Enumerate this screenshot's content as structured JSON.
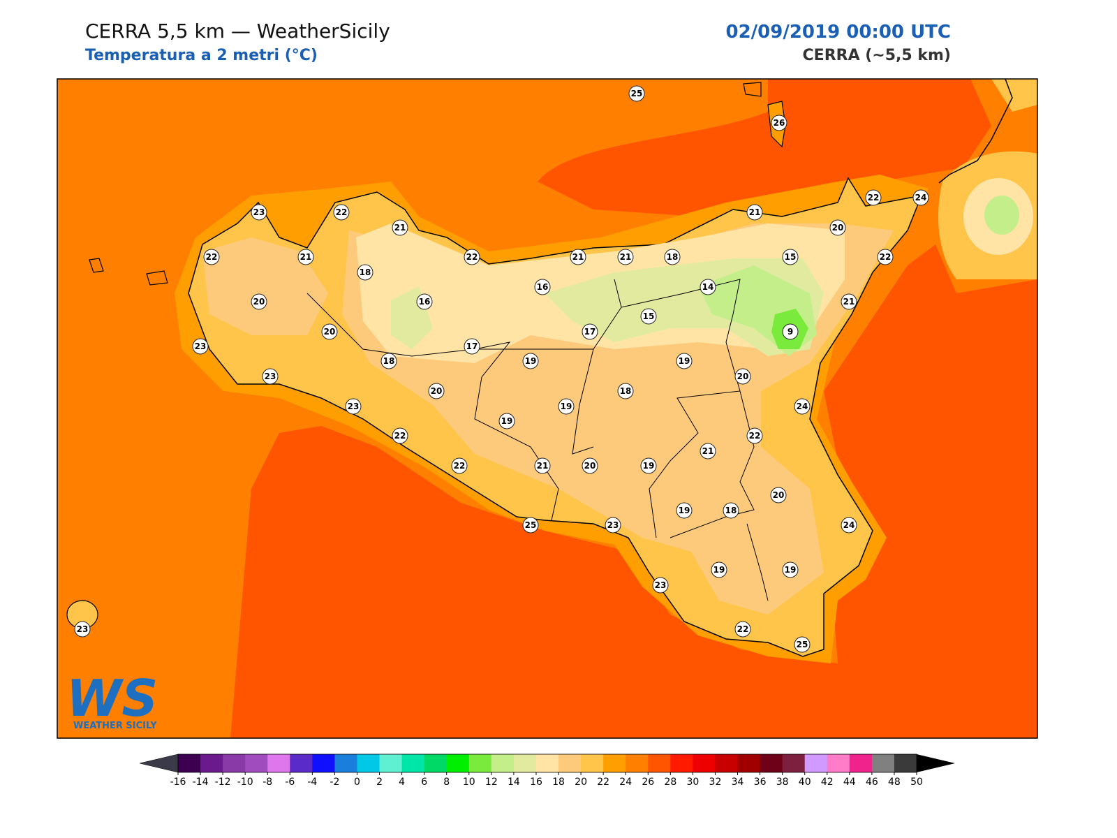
{
  "header": {
    "title": "CERRA 5,5 km — WeatherSicily",
    "subtitle": "Temperatura a 2 metri (°C)",
    "date": "02/09/2019 00:00 UTC",
    "model": "CERRA (~5,5 km)"
  },
  "logo": {
    "mark": "WS",
    "text": "WEATHER SICILY"
  },
  "stations": [
    25,
    26,
    23,
    22,
    21,
    21,
    22,
    24,
    20,
    22,
    21,
    22,
    21,
    21,
    18,
    15,
    22,
    18,
    16,
    14,
    20,
    16,
    21,
    15,
    20,
    17,
    9,
    23,
    17,
    18,
    19,
    19,
    23,
    20,
    20,
    18,
    23,
    19,
    24,
    19,
    22,
    22,
    21,
    22,
    21,
    20,
    19,
    20,
    19,
    18,
    25,
    23,
    24,
    19,
    19,
    23,
    23,
    22,
    25
  ],
  "colorbar": {
    "ticks": [
      -16,
      -14,
      -12,
      -10,
      -8,
      -6,
      -4,
      -2,
      0,
      2,
      4,
      6,
      8,
      10,
      12,
      14,
      16,
      18,
      20,
      22,
      24,
      26,
      28,
      30,
      32,
      34,
      36,
      38,
      40,
      42,
      44,
      46,
      48,
      50
    ],
    "colors": [
      "#3d0050",
      "#6a1a8c",
      "#8a3aa6",
      "#a04cbf",
      "#de76ec",
      "#5a2bc8",
      "#1010ff",
      "#1a7fdc",
      "#00c8e6",
      "#5ef0d0",
      "#00e6a8",
      "#00d966",
      "#00ee00",
      "#7aeb3c",
      "#c4ee8a",
      "#e2eaa0",
      "#ffe4a6",
      "#fdca7c",
      "#ffc54a",
      "#ff9e00",
      "#ff7f00",
      "#ff5500",
      "#ff1a00",
      "#ee0000",
      "#c80000",
      "#a00000",
      "#6e0018",
      "#7d2040",
      "#d09aff",
      "#ff7cc8",
      "#f0228c",
      "#808080",
      "#3a3a3a"
    ],
    "under": "#3a3a48",
    "over": "#000000"
  }
}
